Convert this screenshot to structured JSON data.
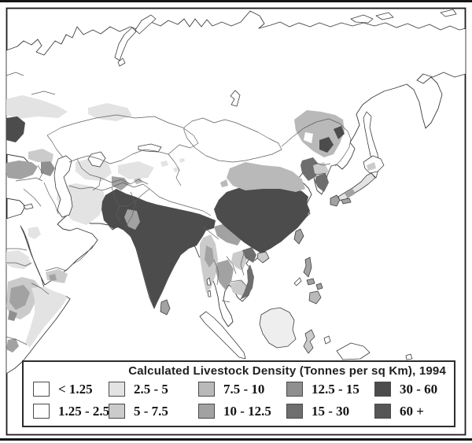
{
  "figure": {
    "kind": "choropleth-map",
    "area_shown": "Asia, Middle East and Horn of Africa"
  },
  "legend": {
    "title": "Calculated Livestock Density (Tonnes per sq Km), 1994",
    "items": [
      {
        "label": "< 1.25",
        "color": "#ffffff"
      },
      {
        "label": "1.25 - 2.5",
        "color": "#ffffff"
      },
      {
        "label": "2.5 - 5",
        "color": "#e3e3e3"
      },
      {
        "label": "5 - 7.5",
        "color": "#cbcbcb"
      },
      {
        "label": "7.5 - 10",
        "color": "#b9b9b9"
      },
      {
        "label": "10 - 12.5",
        "color": "#a2a2a2"
      },
      {
        "label": "12.5 - 15",
        "color": "#8f8f8f"
      },
      {
        "label": "15 - 30",
        "color": "#6e6e6e"
      },
      {
        "label": "30 - 60",
        "color": "#4c4c4c"
      },
      {
        "label": "60 +",
        "color": "#565656"
      }
    ]
  },
  "map_regions": [
    {
      "name": "siberia-russia",
      "category": "< 1.25"
    },
    {
      "name": "western-russia",
      "category": "2.5 - 5"
    },
    {
      "name": "caucasus-left-edge",
      "category": "30 - 60"
    },
    {
      "name": "turkey-anatolia",
      "category": "10 - 12.5"
    },
    {
      "name": "armenia-azerbaijan",
      "category": "12.5 - 15"
    },
    {
      "name": "iran-plateau",
      "category": "2.5 - 5"
    },
    {
      "name": "central-asia",
      "category": "2.5 - 5"
    },
    {
      "name": "fergana-uzbekistan",
      "category": "10 - 12.5"
    },
    {
      "name": "arabia-interior",
      "category": "< 1.25"
    },
    {
      "name": "yemen-asir",
      "category": "5 - 7.5"
    },
    {
      "name": "sudan-eritrea",
      "category": "2.5 - 5"
    },
    {
      "name": "ethiopia-highlands",
      "category": "10 - 12.5"
    },
    {
      "name": "somalia",
      "category": "2.5 - 5"
    },
    {
      "name": "india-pakistan-bangladesh",
      "category": "30 - 60"
    },
    {
      "name": "northwest-india",
      "category": "10 - 12.5"
    },
    {
      "name": "tibet-plateau",
      "category": "< 1.25"
    },
    {
      "name": "myanmar",
      "category": "5 - 7.5"
    },
    {
      "name": "thailand",
      "category": "10 - 12.5"
    },
    {
      "name": "laos",
      "category": "5 - 7.5"
    },
    {
      "name": "cambodia",
      "category": "5 - 7.5"
    },
    {
      "name": "vietnam",
      "category": "15 - 30"
    },
    {
      "name": "southwest-china-yunnan",
      "category": "10 - 12.5"
    },
    {
      "name": "eastern-china",
      "category": "30 - 60"
    },
    {
      "name": "north-china-band",
      "category": "7.5 - 10"
    },
    {
      "name": "manchuria",
      "category": "7.5 - 10"
    },
    {
      "name": "manchuria-hotspots",
      "category": "30 - 60"
    },
    {
      "name": "hebei-liaoning",
      "category": "15 - 30"
    },
    {
      "name": "mongolia",
      "category": "< 1.25"
    },
    {
      "name": "north-korea",
      "category": "5 - 7.5"
    },
    {
      "name": "south-korea",
      "category": "15 - 30"
    },
    {
      "name": "japan-honshu",
      "category": "2.5 - 5"
    },
    {
      "name": "taiwan",
      "category": "10 - 12.5"
    },
    {
      "name": "philippines",
      "category": "10 - 12.5"
    },
    {
      "name": "sri-lanka",
      "category": "10 - 12.5"
    },
    {
      "name": "indonesia",
      "category": "1.25 - 2.5"
    }
  ]
}
